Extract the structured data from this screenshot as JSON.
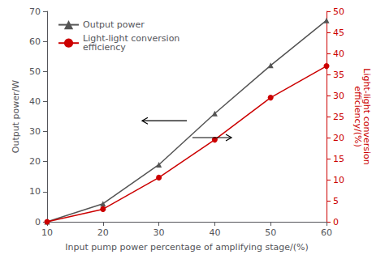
{
  "chart_data": {
    "type": "line",
    "xlabel": "Input pump power percentage of amplifying stage/(%)",
    "ylabel": "Output power/W",
    "y2label": "Light-light conversion\nefficiency/(%)",
    "x": [
      10,
      20,
      30,
      40,
      50,
      60
    ],
    "xlim": [
      10,
      60
    ],
    "xticks": [
      10,
      20,
      30,
      40,
      50,
      60
    ],
    "ylim": [
      0,
      70
    ],
    "yticks": [
      0,
      10,
      20,
      30,
      40,
      50,
      60,
      70
    ],
    "y2lim": [
      0,
      50
    ],
    "y2ticks": [
      0,
      5,
      10,
      15,
      20,
      25,
      30,
      35,
      40,
      45,
      50
    ],
    "grid": false,
    "legend": "upper left",
    "series": [
      {
        "name": "Output power",
        "color": "#555555",
        "marker": "triangle",
        "values": [
          0,
          6,
          19,
          36,
          52,
          67
        ]
      },
      {
        "name": "Light-light conversion\nefficiency",
        "color": "#cc0000",
        "marker": "circle",
        "axis": "y2",
        "values": [
          0,
          3,
          10.5,
          19.5,
          29.5,
          37
        ]
      }
    ]
  }
}
